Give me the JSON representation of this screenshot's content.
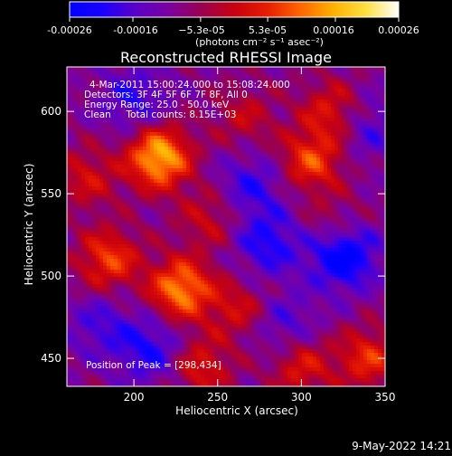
{
  "chart_data": {
    "type": "heatmap",
    "title": "Reconstructed RHESSI Image",
    "xlabel": "Heliocentric X (arcsec)",
    "ylabel": "Heliocentric Y (arcsec)",
    "xlim": [
      160,
      350
    ],
    "ylim": [
      433,
      627
    ],
    "xticks": [
      200,
      250,
      300,
      350
    ],
    "yticks": [
      450,
      500,
      550,
      600
    ],
    "colorbar": {
      "ticks": [
        "-0.00026",
        "-0.00016",
        "−5.3e-05",
        "5.3e-05",
        "0.00016",
        "0.00026"
      ],
      "tick_values": [
        -0.00026,
        -0.00016,
        -5.3e-05,
        5.3e-05,
        0.00016,
        0.00026
      ],
      "range": [
        -0.00026,
        0.00026
      ],
      "unit_label": "(photons cm⁻² s⁻¹ asec⁻²)",
      "colormap": [
        "#0000ff",
        "#1a00ff",
        "#5a00c8",
        "#7a00a0",
        "#9a0050",
        "#c80010",
        "#e81c00",
        "#ff6400",
        "#ffb000",
        "#ffe040",
        "#ffffff"
      ]
    },
    "annotations": [
      "4-Mar-2011 15:00:24.000 to 15:08:24.000",
      "Detectors: 3F 4F 5F 6F 7F 8F, All 0",
      "Energy Range: 25.0 - 50.0 keV",
      "Clean     Total counts: 8.15E+03"
    ],
    "peak_text": "Position of Peak = [298,434]",
    "peak": {
      "x": 298,
      "y": 434
    },
    "hotspots": [
      {
        "x": 215,
        "y": 572,
        "amp": 0.00026
      },
      {
        "x": 228,
        "y": 492,
        "amp": 0.00022
      },
      {
        "x": 185,
        "y": 510,
        "amp": 0.00016
      },
      {
        "x": 306,
        "y": 570,
        "amp": 0.00016
      },
      {
        "x": 318,
        "y": 600,
        "amp": 0.00012
      },
      {
        "x": 340,
        "y": 450,
        "amp": 0.00014
      },
      {
        "x": 300,
        "y": 445,
        "amp": 0.00012
      },
      {
        "x": 262,
        "y": 480,
        "amp": 0.0001
      },
      {
        "x": 172,
        "y": 560,
        "amp": 0.0001
      },
      {
        "x": 266,
        "y": 596,
        "amp": 8e-05
      },
      {
        "x": 245,
        "y": 535,
        "amp": 9e-05
      },
      {
        "x": 240,
        "y": 445,
        "amp": 0.00012
      },
      {
        "x": 320,
        "y": 530,
        "amp": 8e-05
      }
    ],
    "coldspots": [
      {
        "x": 325,
        "y": 513,
        "amp": -0.0002
      },
      {
        "x": 210,
        "y": 455,
        "amp": -0.00012
      },
      {
        "x": 280,
        "y": 520,
        "amp": -0.00012
      },
      {
        "x": 200,
        "y": 607,
        "amp": -0.0001
      },
      {
        "x": 270,
        "y": 555,
        "amp": -0.0001
      },
      {
        "x": 180,
        "y": 470,
        "amp": -8e-05
      },
      {
        "x": 340,
        "y": 590,
        "amp": -8e-05
      },
      {
        "x": 290,
        "y": 470,
        "amp": -8e-05
      }
    ]
  },
  "footer": {
    "timestamp": "9-May-2022 14:21"
  }
}
